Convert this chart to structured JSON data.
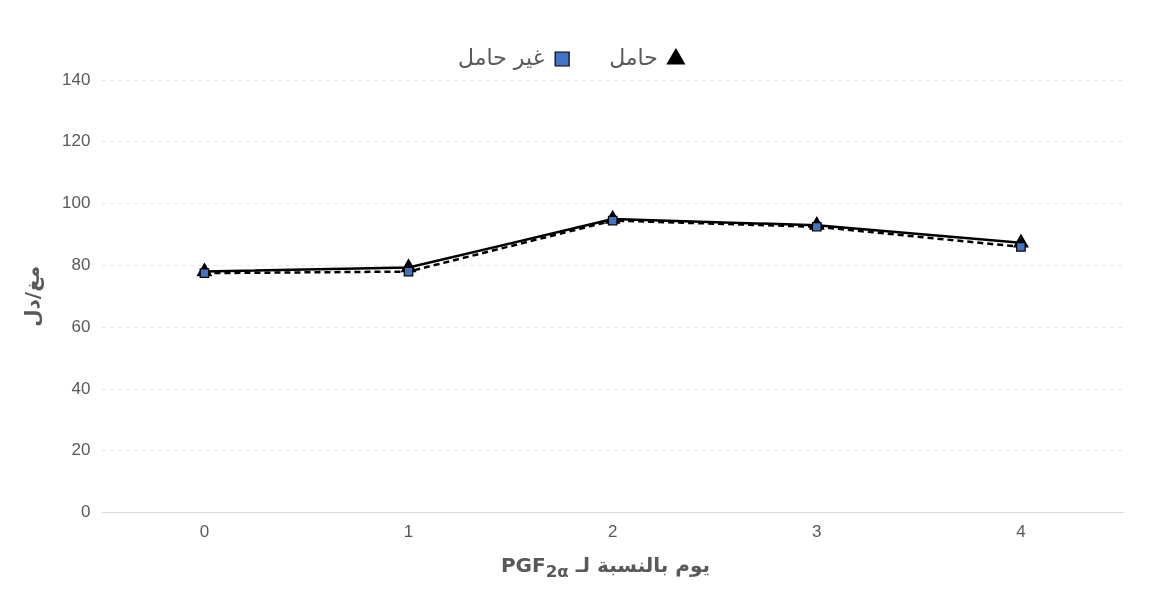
{
  "chart_data": {
    "type": "line",
    "xlabel": "يوم بالنسبة لـ PGF$_{2α}$",
    "ylabel": "مغ/دل",
    "categories": [
      "0",
      "1",
      "2",
      "3",
      "4"
    ],
    "series": [
      {
        "name": "حامل",
        "color": "#000000",
        "values": [
          78,
          79.3,
          95,
          93,
          87.3
        ],
        "marker": "triangle",
        "line_style": "solid"
      },
      {
        "name": "غير حامل",
        "color": "#000000",
        "values": [
          77.5,
          78,
          94.5,
          92.5,
          86
        ],
        "marker": "square",
        "line_style": "dashed"
      }
    ],
    "ylim": [
      0,
      140
    ],
    "yticks": [
      0,
      20,
      40,
      60,
      80,
      100,
      120,
      140
    ],
    "grid": "y",
    "legend": "top"
  }
}
